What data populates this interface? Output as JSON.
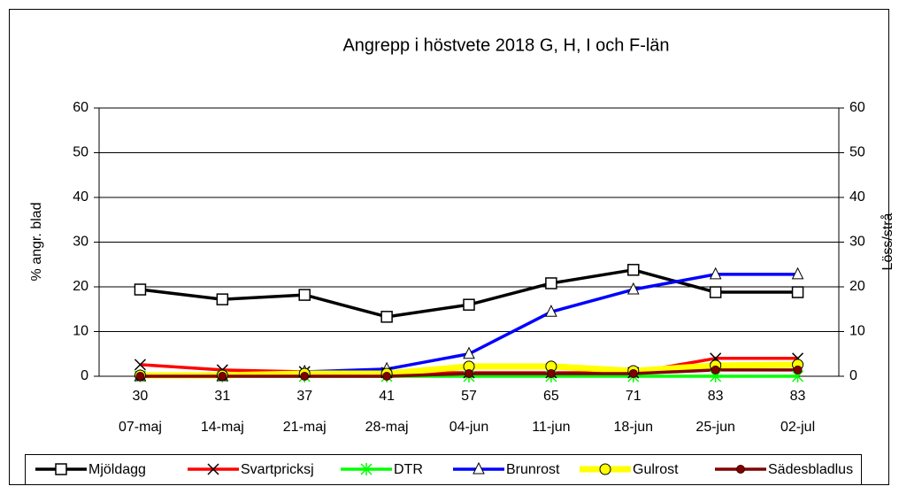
{
  "chart_data": {
    "type": "line",
    "title": "Angrepp i höstvete 2018  G, H, I och F-län",
    "y_label": "% angr. blad",
    "y2_label": "Löss/strå",
    "stages": [
      "30",
      "31",
      "37",
      "41",
      "57",
      "65",
      "71",
      "83",
      "83"
    ],
    "categories": [
      "07-maj",
      "14-maj",
      "21-maj",
      "28-maj",
      "04-jun",
      "11-jun",
      "18-jun",
      "25-jun",
      "02-jul"
    ],
    "ylim": [
      0,
      60
    ],
    "yticks": [
      0,
      10,
      20,
      30,
      40,
      50,
      60
    ],
    "y2lim": [
      0,
      60
    ],
    "y2ticks": [
      0,
      10,
      20,
      30,
      40,
      50,
      60
    ],
    "grid": true,
    "legend": "bottom",
    "series": [
      {
        "name": "Mjöldagg",
        "color": "#000000",
        "marker": "square",
        "values": [
          19.4,
          17.2,
          18.2,
          13.3,
          16,
          20.8,
          23.8,
          18.8,
          18.8
        ]
      },
      {
        "name": "Svartpricksj",
        "color": "#ff0000",
        "marker": "x",
        "values": [
          2.6,
          1.4,
          1,
          0.8,
          0.8,
          0.8,
          0.8,
          4,
          4
        ]
      },
      {
        "name": "DTR",
        "color": "#00ff00",
        "marker": "asterisk",
        "values": [
          0,
          0,
          0,
          0,
          0,
          0,
          0,
          0,
          0
        ]
      },
      {
        "name": "Brunrost",
        "color": "#0000ff",
        "marker": "triangle",
        "values": [
          0,
          0,
          1,
          1.6,
          5,
          14.4,
          19.4,
          22.8,
          22.8
        ]
      },
      {
        "name": "Gulrost",
        "color": "#ffff00",
        "marker": "circle",
        "values": [
          0.2,
          0.2,
          0.6,
          0.6,
          2.2,
          2.2,
          1.2,
          2.4,
          2.6
        ]
      },
      {
        "name": "Sädesbladlus",
        "color": "#800000",
        "marker": "dot",
        "axis": "y2",
        "values": [
          0,
          0,
          0,
          0,
          0.6,
          0.6,
          0.6,
          1.4,
          1.4
        ]
      }
    ]
  }
}
